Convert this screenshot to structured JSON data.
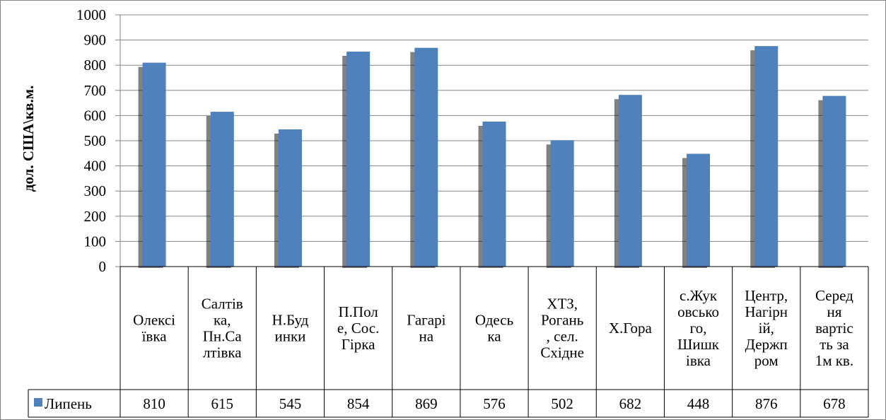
{
  "chart_data": {
    "type": "bar",
    "title": "",
    "xlabel": "",
    "ylabel": "дол. США\\кв.м.",
    "ylim": [
      0,
      1000
    ],
    "yticks": [
      0,
      100,
      200,
      300,
      400,
      500,
      600,
      700,
      800,
      900,
      1000
    ],
    "grid": true,
    "legend_position": "data-table-row",
    "categories": [
      [
        "Олексі",
        "ївка"
      ],
      [
        "Салтів",
        "ка,",
        "Пн.Са",
        "лтівка"
      ],
      [
        "Н.Буд",
        "инки"
      ],
      [
        "П.Пол",
        "е, Сос.",
        "Гірка"
      ],
      [
        "Гагарі",
        "на"
      ],
      [
        "Одесь",
        "ка"
      ],
      [
        "ХТЗ,",
        "Рогань",
        ", сел.",
        "Східне"
      ],
      [
        "Х.Гора"
      ],
      [
        "с.Жук",
        "овсько",
        "го,",
        "Шишк",
        "івка"
      ],
      [
        "Центр,",
        "Нагірн",
        "ій,",
        "Держп",
        "ром"
      ],
      [
        "Серед",
        "ня",
        "вартіс",
        "ть за",
        "1м кв."
      ]
    ],
    "series": [
      {
        "name": "Липень",
        "color": "#4f81bd",
        "values": [
          810,
          615,
          545,
          854,
          869,
          576,
          502,
          682,
          448,
          876,
          678
        ]
      }
    ]
  }
}
